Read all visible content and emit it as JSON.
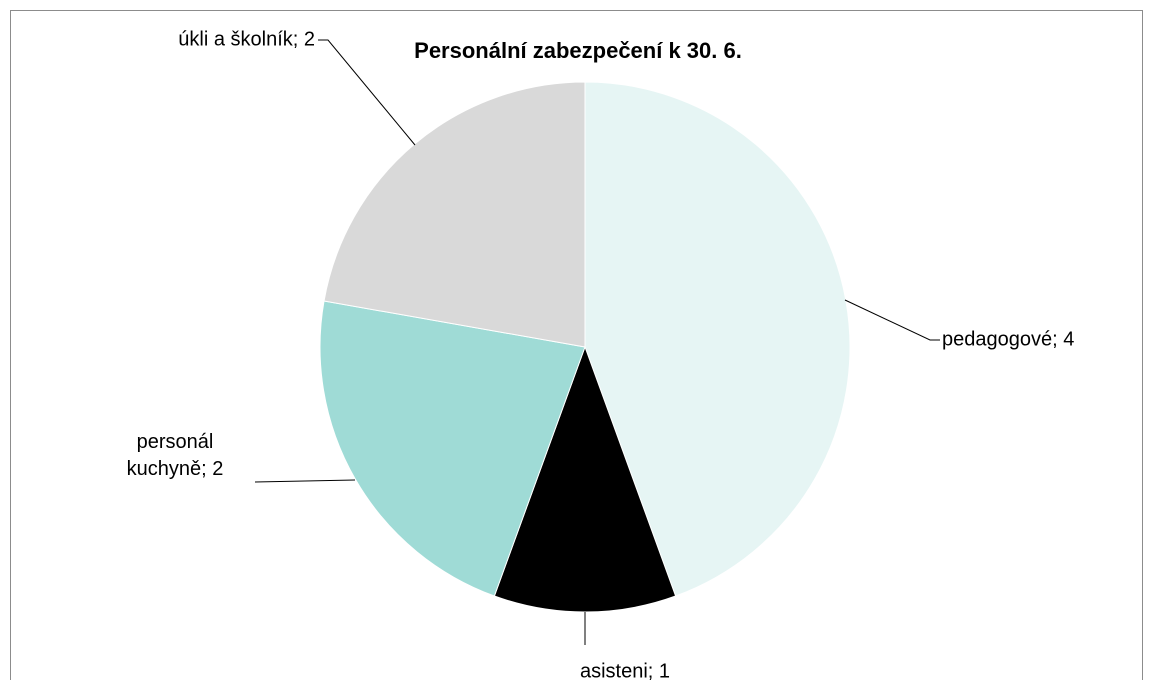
{
  "chart_data": {
    "type": "pie",
    "title": "Personální zabezpečení k 30. 6.",
    "values": [
      4,
      1,
      2,
      2
    ],
    "value_labels": [
      "pedagogové; 4",
      "asisteni; 1",
      "personál kuchyně; 2",
      "úkli a školník; 2"
    ],
    "colors": [
      "#e6f5f4",
      "#000000",
      "#9fdbd6",
      "#d9d9d9"
    ]
  }
}
